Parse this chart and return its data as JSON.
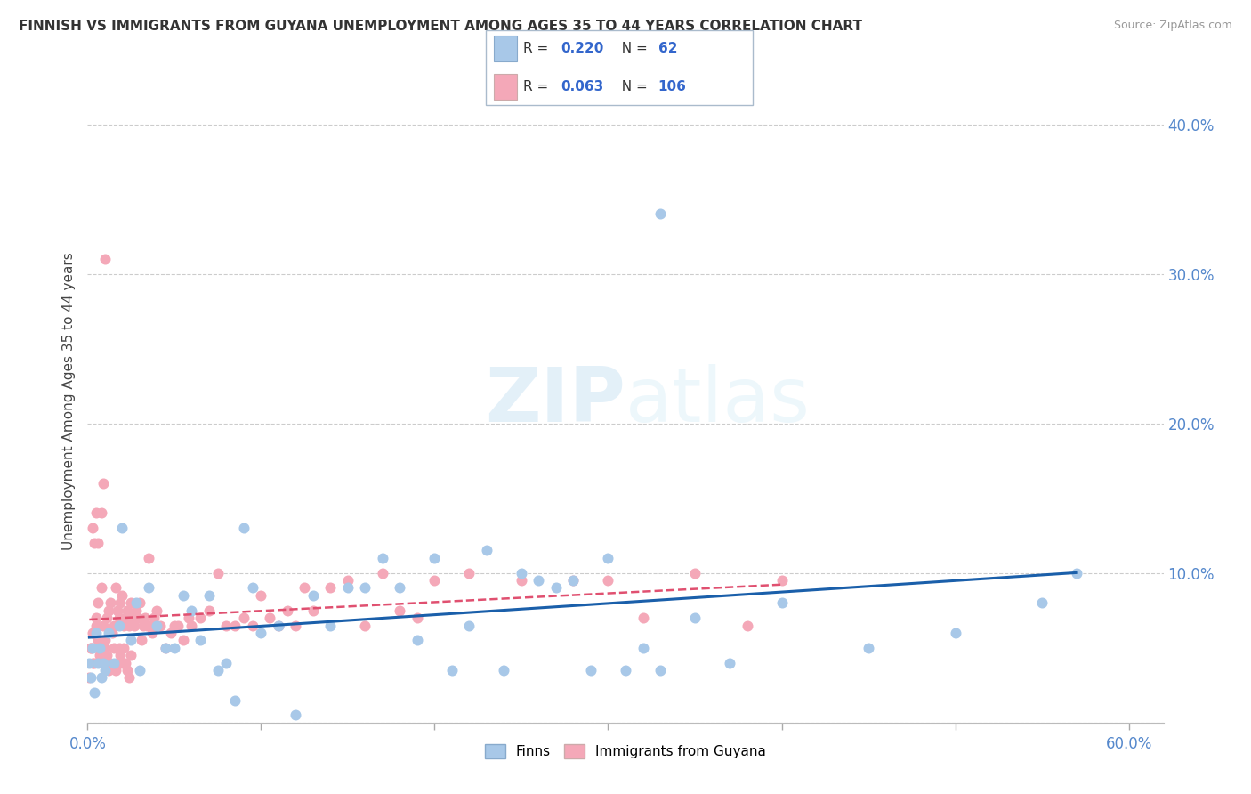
{
  "title": "FINNISH VS IMMIGRANTS FROM GUYANA UNEMPLOYMENT AMONG AGES 35 TO 44 YEARS CORRELATION CHART",
  "source": "Source: ZipAtlas.com",
  "ylabel": "Unemployment Among Ages 35 to 44 years",
  "watermark_zip": "ZIP",
  "watermark_atlas": "atlas",
  "background_color": "#ffffff",
  "grid_color": "#cccccc",
  "finn_scatter_color": "#a8c8e8",
  "guyana_scatter_color": "#f4a8b8",
  "finn_line_color": "#1a5faa",
  "guyana_line_color": "#e05070",
  "finn_R": 0.22,
  "finn_N": 62,
  "guyana_R": 0.063,
  "guyana_N": 106,
  "xlim": [
    0.0,
    0.62
  ],
  "ylim": [
    0.0,
    0.43
  ],
  "x_tick_positions": [
    0.0,
    0.1,
    0.2,
    0.3,
    0.4,
    0.5,
    0.6
  ],
  "y_tick_positions": [
    0.0,
    0.1,
    0.2,
    0.3,
    0.4
  ],
  "finn_x": [
    0.001,
    0.002,
    0.003,
    0.004,
    0.005,
    0.006,
    0.007,
    0.008,
    0.009,
    0.01,
    0.012,
    0.015,
    0.018,
    0.02,
    0.025,
    0.028,
    0.03,
    0.035,
    0.04,
    0.045,
    0.05,
    0.055,
    0.06,
    0.065,
    0.07,
    0.075,
    0.08,
    0.085,
    0.09,
    0.095,
    0.1,
    0.11,
    0.12,
    0.13,
    0.14,
    0.15,
    0.16,
    0.17,
    0.18,
    0.19,
    0.2,
    0.21,
    0.22,
    0.23,
    0.24,
    0.25,
    0.26,
    0.27,
    0.28,
    0.29,
    0.3,
    0.31,
    0.32,
    0.33,
    0.35,
    0.37,
    0.4,
    0.45,
    0.5,
    0.55,
    0.57,
    0.33
  ],
  "finn_y": [
    0.04,
    0.03,
    0.05,
    0.02,
    0.06,
    0.04,
    0.05,
    0.03,
    0.04,
    0.035,
    0.06,
    0.04,
    0.065,
    0.13,
    0.055,
    0.08,
    0.035,
    0.09,
    0.065,
    0.05,
    0.05,
    0.085,
    0.075,
    0.055,
    0.085,
    0.035,
    0.04,
    0.015,
    0.13,
    0.09,
    0.06,
    0.065,
    0.005,
    0.085,
    0.065,
    0.09,
    0.09,
    0.11,
    0.09,
    0.055,
    0.11,
    0.035,
    0.065,
    0.115,
    0.035,
    0.1,
    0.095,
    0.09,
    0.095,
    0.035,
    0.11,
    0.035,
    0.05,
    0.035,
    0.07,
    0.04,
    0.08,
    0.05,
    0.06,
    0.08,
    0.1,
    0.34
  ],
  "guyana_x": [
    0.001,
    0.002,
    0.003,
    0.004,
    0.005,
    0.006,
    0.007,
    0.008,
    0.009,
    0.01,
    0.011,
    0.012,
    0.013,
    0.014,
    0.015,
    0.016,
    0.017,
    0.018,
    0.019,
    0.02,
    0.021,
    0.022,
    0.023,
    0.024,
    0.025,
    0.026,
    0.027,
    0.028,
    0.029,
    0.03,
    0.031,
    0.032,
    0.033,
    0.034,
    0.035,
    0.036,
    0.037,
    0.038,
    0.04,
    0.042,
    0.045,
    0.048,
    0.05,
    0.052,
    0.055,
    0.058,
    0.06,
    0.065,
    0.07,
    0.075,
    0.08,
    0.085,
    0.09,
    0.095,
    0.1,
    0.105,
    0.11,
    0.115,
    0.12,
    0.125,
    0.13,
    0.14,
    0.15,
    0.16,
    0.17,
    0.18,
    0.19,
    0.2,
    0.22,
    0.25,
    0.28,
    0.3,
    0.32,
    0.35,
    0.38,
    0.4,
    0.002,
    0.003,
    0.004,
    0.005,
    0.006,
    0.007,
    0.008,
    0.009,
    0.01,
    0.011,
    0.012,
    0.013,
    0.015,
    0.016,
    0.017,
    0.018,
    0.019,
    0.02,
    0.021,
    0.022,
    0.023,
    0.024,
    0.025,
    0.003,
    0.004,
    0.005,
    0.006,
    0.008,
    0.009,
    0.01
  ],
  "guyana_y": [
    0.03,
    0.05,
    0.04,
    0.06,
    0.07,
    0.08,
    0.05,
    0.09,
    0.065,
    0.055,
    0.07,
    0.075,
    0.08,
    0.06,
    0.065,
    0.09,
    0.075,
    0.07,
    0.08,
    0.085,
    0.065,
    0.07,
    0.075,
    0.065,
    0.08,
    0.07,
    0.065,
    0.075,
    0.07,
    0.08,
    0.055,
    0.065,
    0.07,
    0.065,
    0.11,
    0.065,
    0.06,
    0.07,
    0.075,
    0.065,
    0.05,
    0.06,
    0.065,
    0.065,
    0.055,
    0.07,
    0.065,
    0.07,
    0.075,
    0.1,
    0.065,
    0.065,
    0.07,
    0.065,
    0.085,
    0.07,
    0.065,
    0.075,
    0.065,
    0.09,
    0.075,
    0.09,
    0.095,
    0.065,
    0.1,
    0.075,
    0.07,
    0.095,
    0.1,
    0.095,
    0.095,
    0.095,
    0.07,
    0.1,
    0.065,
    0.095,
    0.05,
    0.06,
    0.04,
    0.065,
    0.055,
    0.045,
    0.05,
    0.04,
    0.05,
    0.045,
    0.035,
    0.04,
    0.05,
    0.035,
    0.04,
    0.05,
    0.045,
    0.04,
    0.05,
    0.04,
    0.035,
    0.03,
    0.045,
    0.13,
    0.12,
    0.14,
    0.12,
    0.14,
    0.16,
    0.31
  ]
}
